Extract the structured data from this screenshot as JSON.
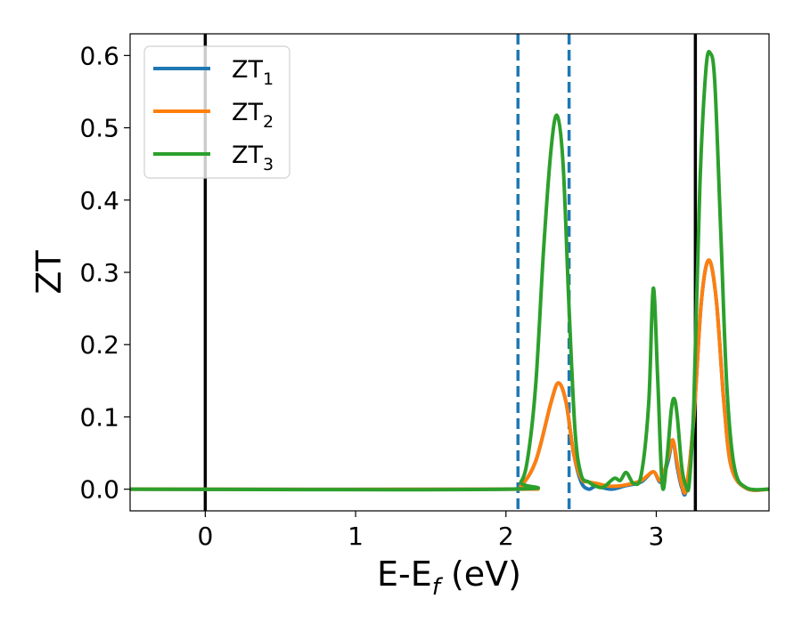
{
  "chart_data": {
    "type": "line",
    "xlabel": "E-E",
    "xlabel_sub": "f",
    "xlabel_unit": "(eV)",
    "ylabel": "ZT",
    "xlim": [
      -0.5,
      3.75
    ],
    "ylim": [
      -0.03,
      0.63
    ],
    "xticks": [
      0,
      1,
      2,
      3
    ],
    "xtick_labels": [
      "0",
      "1",
      "2",
      "3"
    ],
    "yticks": [
      0.0,
      0.1,
      0.2,
      0.3,
      0.4,
      0.5,
      0.6
    ],
    "ytick_labels": [
      "0.0",
      "0.1",
      "0.2",
      "0.3",
      "0.4",
      "0.5",
      "0.6"
    ],
    "grid": false,
    "legend_position": "top-left",
    "vertical_lines": [
      {
        "x": 0.0,
        "style": "solid",
        "color": "#000000"
      },
      {
        "x": 2.08,
        "style": "dashed",
        "color": "#1f77b4"
      },
      {
        "x": 2.42,
        "style": "dashed",
        "color": "#1f77b4"
      },
      {
        "x": 3.26,
        "style": "solid",
        "color": "#000000"
      }
    ],
    "series": [
      {
        "name": "ZT",
        "name_sub": "1",
        "color": "#1f77b4",
        "x": [
          -0.5,
          2.0,
          2.1,
          2.2,
          2.3,
          2.35,
          2.4,
          2.45,
          2.5,
          2.55,
          2.6,
          2.7,
          2.8,
          2.9,
          2.98,
          3.03,
          3.08,
          3.11,
          3.14,
          3.17,
          3.2,
          3.25,
          3.3,
          3.35,
          3.4,
          3.45,
          3.5,
          3.6,
          3.75
        ],
        "y": [
          0.0,
          0.0,
          0.005,
          0.04,
          0.12,
          0.147,
          0.12,
          0.05,
          0.01,
          0.0,
          0.004,
          0.0,
          0.005,
          0.01,
          0.024,
          0.01,
          0.04,
          0.068,
          0.03,
          0.002,
          0.0,
          0.1,
          0.26,
          0.317,
          0.26,
          0.12,
          0.03,
          0.001,
          0.0
        ]
      },
      {
        "name": "ZT",
        "name_sub": "2",
        "color": "#ff7f0e",
        "x": [
          -0.5,
          2.0,
          2.1,
          2.2,
          2.3,
          2.35,
          2.4,
          2.45,
          2.5,
          2.55,
          2.6,
          2.7,
          2.8,
          2.9,
          2.98,
          3.03,
          3.08,
          3.11,
          3.14,
          3.17,
          3.2,
          3.25,
          3.3,
          3.35,
          3.4,
          3.45,
          3.5,
          3.6,
          3.75
        ],
        "y": [
          0.0,
          0.0,
          0.005,
          0.04,
          0.12,
          0.147,
          0.12,
          0.05,
          0.015,
          0.01,
          0.008,
          0.004,
          0.006,
          0.012,
          0.024,
          0.012,
          0.045,
          0.068,
          0.035,
          0.005,
          0.002,
          0.1,
          0.26,
          0.317,
          0.26,
          0.12,
          0.03,
          0.001,
          0.0
        ]
      },
      {
        "name": "ZT",
        "name_sub": "3",
        "color": "#2ca02c",
        "x": [
          -0.5,
          2.0,
          2.1,
          2.15,
          2.2,
          2.25,
          2.3,
          2.34,
          2.38,
          2.42,
          2.46,
          2.5,
          2.55,
          2.6,
          2.65,
          2.72,
          2.76,
          2.8,
          2.85,
          2.9,
          2.95,
          2.98,
          3.01,
          3.04,
          3.07,
          3.1,
          3.12,
          3.14,
          3.17,
          3.2,
          3.22,
          3.25,
          3.29,
          3.33,
          3.36,
          3.39,
          3.43,
          3.47,
          3.52,
          3.6,
          3.75
        ],
        "y": [
          0.0,
          0.0,
          0.01,
          0.05,
          0.15,
          0.33,
          0.47,
          0.517,
          0.45,
          0.25,
          0.08,
          0.02,
          0.01,
          0.004,
          0.003,
          0.015,
          0.012,
          0.023,
          0.008,
          0.02,
          0.12,
          0.278,
          0.15,
          0.005,
          0.04,
          0.11,
          0.125,
          0.1,
          0.03,
          0.003,
          0.01,
          0.12,
          0.42,
          0.58,
          0.603,
          0.56,
          0.35,
          0.14,
          0.03,
          0.002,
          0.0
        ]
      }
    ]
  }
}
